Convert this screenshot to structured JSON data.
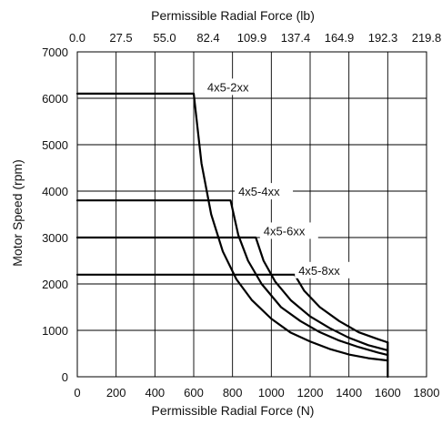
{
  "chart_data": {
    "type": "line",
    "title": "",
    "xlabel": "Permissible Radial Force (N)",
    "x2label": "Permissible Radial Force (lb)",
    "ylabel": "Motor Speed (rpm)",
    "xlim": [
      0,
      1800
    ],
    "ylim": [
      0,
      7000
    ],
    "x_ticks": [
      "0",
      "200",
      "400",
      "600",
      "800",
      "1000",
      "1200",
      "1400",
      "1600",
      "1800"
    ],
    "y_ticks": [
      "0",
      "1000",
      "2000",
      "3000",
      "4000",
      "5000",
      "6000",
      "7000"
    ],
    "x2_ticks": [
      "0.0",
      "27.5",
      "55.0",
      "82.4",
      "109.9",
      "137.4",
      "164.9",
      "192.3",
      "219.8"
    ],
    "grid": true,
    "legend": "none",
    "colors": {
      "line": "#000000",
      "grid": "#000000"
    },
    "series": [
      {
        "name": "4x5-2xx",
        "label_x": 670,
        "label_y": 6150,
        "points": [
          [
            0,
            6100
          ],
          [
            600,
            6100
          ],
          [
            640,
            4600
          ],
          [
            690,
            3500
          ],
          [
            750,
            2700
          ],
          [
            820,
            2100
          ],
          [
            900,
            1650
          ],
          [
            1000,
            1250
          ],
          [
            1100,
            950
          ],
          [
            1200,
            760
          ],
          [
            1300,
            600
          ],
          [
            1400,
            480
          ],
          [
            1500,
            400
          ],
          [
            1600,
            350
          ]
        ]
      },
      {
        "name": "4x5-4xx",
        "label_x": 830,
        "label_y": 3900,
        "points": [
          [
            0,
            3800
          ],
          [
            790,
            3800
          ],
          [
            830,
            3050
          ],
          [
            880,
            2500
          ],
          [
            950,
            2000
          ],
          [
            1050,
            1500
          ],
          [
            1150,
            1200
          ],
          [
            1250,
            960
          ],
          [
            1350,
            780
          ],
          [
            1450,
            640
          ],
          [
            1550,
            520
          ],
          [
            1600,
            470
          ]
        ]
      },
      {
        "name": "4x5-6xx",
        "label_x": 960,
        "label_y": 3050,
        "points": [
          [
            0,
            3000
          ],
          [
            920,
            3000
          ],
          [
            960,
            2500
          ],
          [
            1020,
            2050
          ],
          [
            1100,
            1650
          ],
          [
            1200,
            1300
          ],
          [
            1300,
            1050
          ],
          [
            1400,
            840
          ],
          [
            1500,
            680
          ],
          [
            1600,
            570
          ]
        ]
      },
      {
        "name": "4x5-8xx",
        "label_x": 1140,
        "label_y": 2200,
        "points": [
          [
            0,
            2200
          ],
          [
            1120,
            2200
          ],
          [
            1170,
            1850
          ],
          [
            1250,
            1500
          ],
          [
            1350,
            1200
          ],
          [
            1450,
            960
          ],
          [
            1550,
            810
          ],
          [
            1600,
            740
          ]
        ]
      }
    ],
    "drop_line": {
      "x": 1600,
      "y_top": 740,
      "y_bottom": 0
    }
  }
}
